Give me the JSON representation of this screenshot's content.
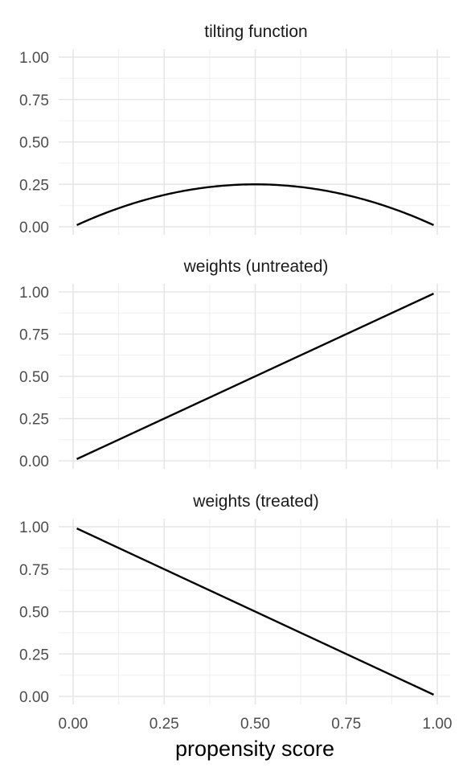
{
  "chart_data": {
    "type": "line",
    "xlabel": "propensity score",
    "x_ticks": [
      "0.00",
      "0.25",
      "0.50",
      "0.75",
      "1.00"
    ],
    "y_ticks": [
      "0.00",
      "0.25",
      "0.50",
      "0.75",
      "1.00"
    ],
    "xlim": [
      0,
      1
    ],
    "ylim": [
      0,
      1
    ],
    "grid": true,
    "legend": "none",
    "colors": {
      "line": "#000000",
      "grid": "#e6e6e6",
      "background": "#ffffff"
    },
    "panels": [
      {
        "title": "tilting function",
        "x": [
          0.01,
          0.1,
          0.2,
          0.3,
          0.4,
          0.5,
          0.6,
          0.7,
          0.8,
          0.9,
          0.99
        ],
        "y": [
          0.0099,
          0.09,
          0.16,
          0.21,
          0.24,
          0.25,
          0.24,
          0.21,
          0.16,
          0.09,
          0.0099
        ]
      },
      {
        "title": "weights (untreated)",
        "x": [
          0.01,
          0.99
        ],
        "y": [
          0.01,
          0.99
        ]
      },
      {
        "title": "weights (treated)",
        "x": [
          0.01,
          0.99
        ],
        "y": [
          0.99,
          0.01
        ]
      }
    ]
  }
}
